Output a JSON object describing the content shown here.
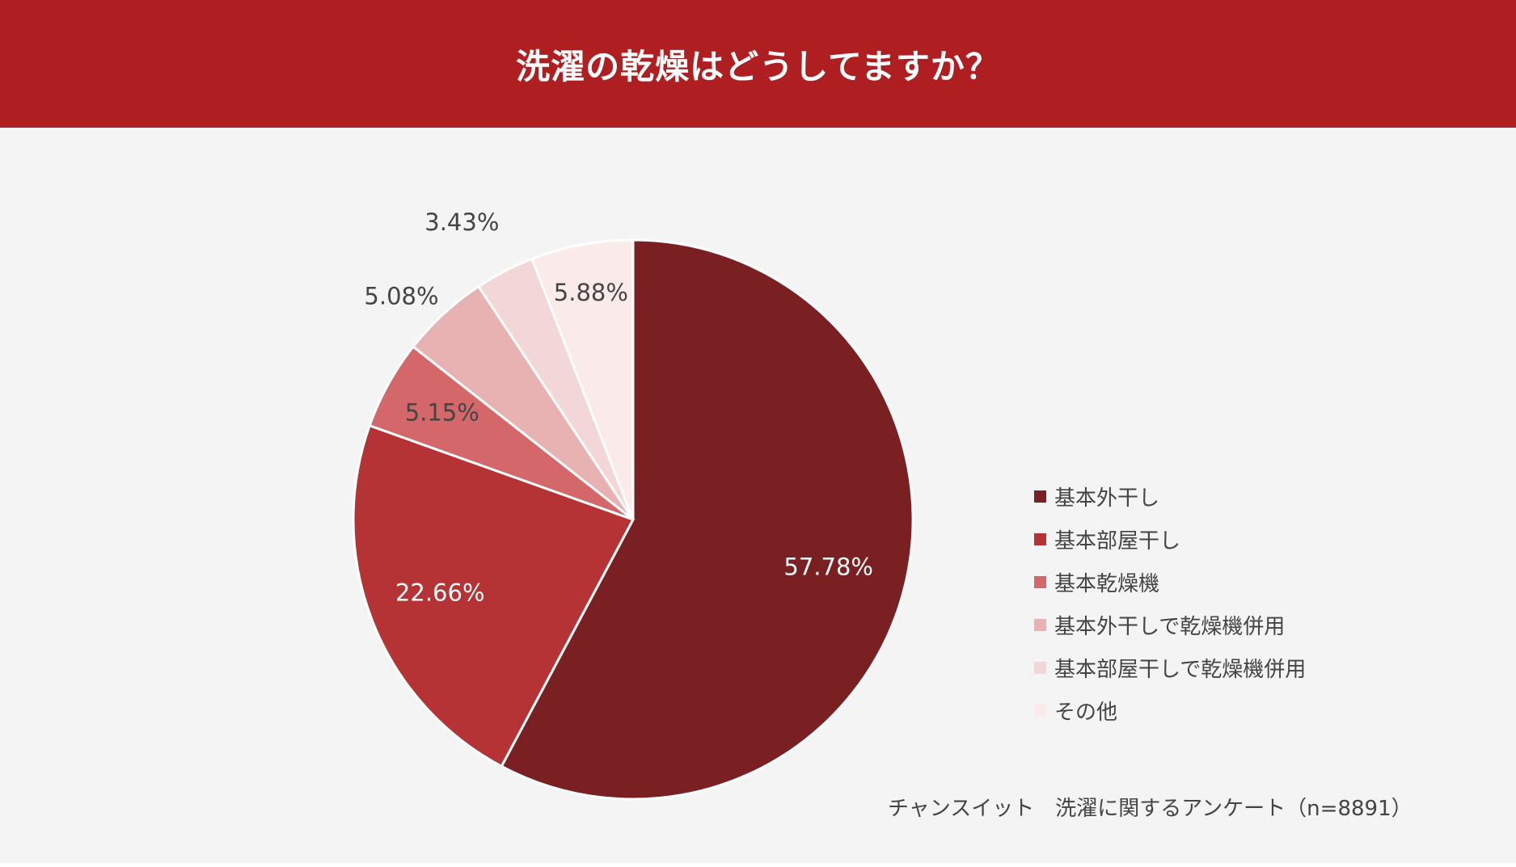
{
  "header": {
    "title": "洗濯の乾燥はどうしてますか？",
    "background": "#af1e20",
    "text_color": "#ffffff"
  },
  "chart_data": {
    "type": "pie",
    "title": "洗濯の乾燥はどうしてますか？",
    "start": "12 o'clock, clockwise",
    "slices": [
      {
        "label": "基本外干し",
        "value": 57.78,
        "value_label": "57.78%",
        "color": "#7a2022",
        "text_color": "#ffffff"
      },
      {
        "label": "基本部屋干し",
        "value": 22.66,
        "value_label": "22.66%",
        "color": "#b53334",
        "text_color": "#ffffff"
      },
      {
        "label": "基本乾燥機",
        "value": 5.15,
        "value_label": "5.15%",
        "color": "#d46769",
        "text_color": "#444444"
      },
      {
        "label": "基本外干しで乾燥機併用",
        "value": 5.08,
        "value_label": "5.08%",
        "color": "#e8b2b3",
        "text_color": "#444444"
      },
      {
        "label": "基本部屋干しで乾燥機併用",
        "value": 3.43,
        "value_label": "3.43%",
        "color": "#f3d6d7",
        "text_color": "#444444"
      },
      {
        "label": "その他",
        "value": 5.88,
        "value_label": "5.88%",
        "color": "#fbeaea",
        "text_color": "#444444"
      }
    ],
    "legend_position": "right"
  },
  "source": "チャンスイット　洗濯に関するアンケート（n=8891）"
}
